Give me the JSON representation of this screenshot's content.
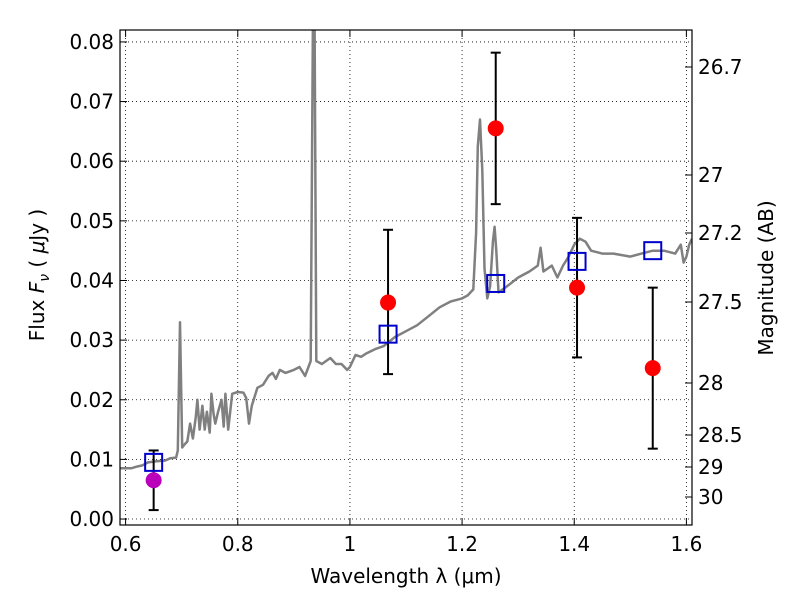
{
  "chart_data": {
    "type": "scatter",
    "xlabel": "Wavelength  λ (μm)",
    "ylabel": "Flux  F_ν  ( μJy )",
    "ylabel_parts": {
      "pre": "Flux  ",
      "sym": "F",
      "sub": "ν",
      "mid": "  (  ",
      "mu": "μ",
      "post": "Jy )"
    },
    "ylabel_right": "Magnitude (AB)",
    "xlim": [
      0.59,
      1.61
    ],
    "ylim": [
      -0.001,
      0.082
    ],
    "grid": true,
    "x_ticks": [
      {
        "value": 0.6,
        "label": "0.6"
      },
      {
        "value": 0.8,
        "label": "0.8"
      },
      {
        "value": 1.0,
        "label": "1"
      },
      {
        "value": 1.2,
        "label": "1.2"
      },
      {
        "value": 1.4,
        "label": "1.4"
      },
      {
        "value": 1.6,
        "label": "1.6"
      }
    ],
    "y_ticks": [
      {
        "value": 0.0,
        "label": "0.00"
      },
      {
        "value": 0.01,
        "label": "0.01"
      },
      {
        "value": 0.02,
        "label": "0.02"
      },
      {
        "value": 0.03,
        "label": "0.03"
      },
      {
        "value": 0.04,
        "label": "0.04"
      },
      {
        "value": 0.05,
        "label": "0.05"
      },
      {
        "value": 0.06,
        "label": "0.06"
      },
      {
        "value": 0.07,
        "label": "0.07"
      },
      {
        "value": 0.08,
        "label": "0.08"
      }
    ],
    "y_ticks_right": [
      {
        "value": 26.7,
        "label": "26.7"
      },
      {
        "value": 27.0,
        "label": "27"
      },
      {
        "value": 27.2,
        "label": "27.2"
      },
      {
        "value": 27.5,
        "label": "27.5"
      },
      {
        "value": 28.0,
        "label": "28"
      },
      {
        "value": 28.5,
        "label": "28.5"
      },
      {
        "value": 29.0,
        "label": "29"
      },
      {
        "value": 30.0,
        "label": "30"
      }
    ],
    "series": [
      {
        "kind": "line",
        "color": "#808080",
        "points": [
          [
            0.59,
            0.0085
          ],
          [
            0.61,
            0.0085
          ],
          [
            0.62,
            0.0088
          ],
          [
            0.63,
            0.009
          ],
          [
            0.64,
            0.0095
          ],
          [
            0.655,
            0.0097
          ],
          [
            0.67,
            0.0098
          ],
          [
            0.68,
            0.0102
          ],
          [
            0.69,
            0.0103
          ],
          [
            0.693,
            0.0115
          ],
          [
            0.697,
            0.033
          ],
          [
            0.701,
            0.012
          ],
          [
            0.705,
            0.0125
          ],
          [
            0.71,
            0.013
          ],
          [
            0.715,
            0.016
          ],
          [
            0.72,
            0.0135
          ],
          [
            0.725,
            0.017
          ],
          [
            0.728,
            0.02
          ],
          [
            0.732,
            0.015
          ],
          [
            0.737,
            0.019
          ],
          [
            0.741,
            0.015
          ],
          [
            0.745,
            0.018
          ],
          [
            0.75,
            0.0145
          ],
          [
            0.753,
            0.021
          ],
          [
            0.757,
            0.0175
          ],
          [
            0.76,
            0.016
          ],
          [
            0.765,
            0.018
          ],
          [
            0.771,
            0.02
          ],
          [
            0.775,
            0.0155
          ],
          [
            0.778,
            0.021
          ],
          [
            0.783,
            0.015
          ],
          [
            0.79,
            0.021
          ],
          [
            0.8,
            0.0213
          ],
          [
            0.81,
            0.0212
          ],
          [
            0.815,
            0.0203
          ],
          [
            0.82,
            0.016
          ],
          [
            0.825,
            0.019
          ],
          [
            0.83,
            0.0205
          ],
          [
            0.835,
            0.022
          ],
          [
            0.845,
            0.0225
          ],
          [
            0.855,
            0.024
          ],
          [
            0.862,
            0.0245
          ],
          [
            0.868,
            0.0235
          ],
          [
            0.875,
            0.025
          ],
          [
            0.885,
            0.0245
          ],
          [
            0.9,
            0.025
          ],
          [
            0.91,
            0.0255
          ],
          [
            0.92,
            0.024
          ],
          [
            0.93,
            0.0265
          ],
          [
            0.934,
            0.083
          ],
          [
            0.937,
            0.083
          ],
          [
            0.94,
            0.0265
          ],
          [
            0.95,
            0.026
          ],
          [
            0.965,
            0.027
          ],
          [
            0.975,
            0.026
          ],
          [
            0.985,
            0.026
          ],
          [
            0.995,
            0.025
          ],
          [
            1.0,
            0.0255
          ],
          [
            1.01,
            0.0275
          ],
          [
            1.02,
            0.0272
          ],
          [
            1.03,
            0.0278
          ],
          [
            1.045,
            0.0285
          ],
          [
            1.06,
            0.029
          ],
          [
            1.08,
            0.0305
          ],
          [
            1.1,
            0.0315
          ],
          [
            1.12,
            0.0325
          ],
          [
            1.14,
            0.034
          ],
          [
            1.16,
            0.0355
          ],
          [
            1.18,
            0.0365
          ],
          [
            1.2,
            0.037
          ],
          [
            1.21,
            0.0375
          ],
          [
            1.215,
            0.038
          ],
          [
            1.22,
            0.0385
          ],
          [
            1.225,
            0.048
          ],
          [
            1.228,
            0.0625
          ],
          [
            1.232,
            0.067
          ],
          [
            1.236,
            0.0585
          ],
          [
            1.24,
            0.042
          ],
          [
            1.245,
            0.037
          ],
          [
            1.25,
            0.039
          ],
          [
            1.255,
            0.0465
          ],
          [
            1.258,
            0.049
          ],
          [
            1.261,
            0.045
          ],
          [
            1.265,
            0.038
          ],
          [
            1.28,
            0.039
          ],
          [
            1.3,
            0.0405
          ],
          [
            1.32,
            0.0415
          ],
          [
            1.335,
            0.0425
          ],
          [
            1.34,
            0.0455
          ],
          [
            1.345,
            0.0415
          ],
          [
            1.36,
            0.0425
          ],
          [
            1.37,
            0.0405
          ],
          [
            1.38,
            0.0425
          ],
          [
            1.39,
            0.044
          ],
          [
            1.4,
            0.046
          ],
          [
            1.41,
            0.047
          ],
          [
            1.42,
            0.0465
          ],
          [
            1.43,
            0.045
          ],
          [
            1.45,
            0.0445
          ],
          [
            1.47,
            0.0445
          ],
          [
            1.5,
            0.044
          ],
          [
            1.52,
            0.0445
          ],
          [
            1.54,
            0.045
          ],
          [
            1.56,
            0.045
          ],
          [
            1.58,
            0.0445
          ],
          [
            1.59,
            0.046
          ],
          [
            1.595,
            0.043
          ],
          [
            1.6,
            0.044
          ],
          [
            1.605,
            0.046
          ],
          [
            1.61,
            0.047
          ]
        ]
      },
      {
        "kind": "points",
        "marker": "circle",
        "color": "#ff0000",
        "points": [
          {
            "x": 1.068,
            "y": 0.0363,
            "err": [
              0.0243,
              0.0485
            ]
          },
          {
            "x": 1.26,
            "y": 0.0655,
            "err": [
              0.0528,
              0.0782
            ]
          },
          {
            "x": 1.405,
            "y": 0.0388,
            "err": [
              0.0271,
              0.0505
            ]
          },
          {
            "x": 1.54,
            "y": 0.0253,
            "err": [
              0.0118,
              0.0388
            ]
          }
        ]
      },
      {
        "kind": "points",
        "marker": "circle",
        "color": "#bb00bb",
        "points": [
          {
            "x": 0.65,
            "y": 0.0065,
            "err": [
              0.0015,
              0.0115
            ]
          }
        ]
      },
      {
        "kind": "points",
        "marker": "open-square",
        "color": "#0000cc",
        "points": [
          {
            "x": 0.65,
            "y": 0.0095
          },
          {
            "x": 1.068,
            "y": 0.031
          },
          {
            "x": 1.26,
            "y": 0.0395
          },
          {
            "x": 1.405,
            "y": 0.0432
          },
          {
            "x": 1.54,
            "y": 0.045
          }
        ]
      }
    ]
  }
}
